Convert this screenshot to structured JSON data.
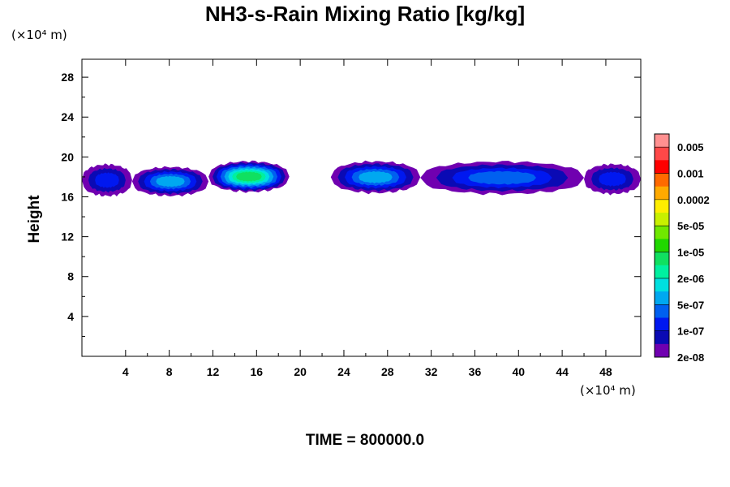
{
  "chart_data": {
    "type": "heatmap",
    "title": "NH3-s-Rain Mixing Ratio [kg/kg]",
    "ylabel": "Height",
    "xlabel": "",
    "x_unit": "(×10⁴ m)",
    "y_unit": "(×10⁴ m)",
    "xlim": [
      0,
      51.2
    ],
    "ylim": [
      0,
      29.8
    ],
    "x_ticks": [
      4,
      8,
      12,
      16,
      20,
      24,
      28,
      32,
      36,
      40,
      44,
      48
    ],
    "y_ticks": [
      4,
      8,
      12,
      16,
      20,
      24,
      28
    ],
    "grid": false,
    "time_label": "TIME = 800000.0",
    "colorbar": {
      "labels": [
        "0.005",
        "0.001",
        "0.0002",
        "5e-05",
        "1e-05",
        "2e-06",
        "5e-07",
        "1e-07",
        "2e-08"
      ],
      "colors": [
        "#ff9090",
        "#ff4848",
        "#ff0000",
        "#ff6a00",
        "#ffaa00",
        "#ffee00",
        "#c8f000",
        "#70e800",
        "#20d800",
        "#10e060",
        "#00f0a0",
        "#00e0e0",
        "#00a8f0",
        "#0060f0",
        "#0018f0",
        "#0a0ab4",
        "#7000b0"
      ]
    },
    "cloud_bands": [
      {
        "x_start": 0.0,
        "x_end": 4.6,
        "y_bottom": 16.2,
        "y_top": 19.7,
        "max_level": 3
      },
      {
        "x_start": 4.6,
        "x_end": 11.6,
        "y_bottom": 16.2,
        "y_top": 19.4,
        "max_level": 5
      },
      {
        "x_start": 11.6,
        "x_end": 19.0,
        "y_bottom": 16.6,
        "y_top": 20.0,
        "max_level": 8
      },
      {
        "x_start": 22.8,
        "x_end": 31.0,
        "y_bottom": 16.5,
        "y_top": 20.0,
        "max_level": 5
      },
      {
        "x_start": 31.0,
        "x_end": 46.0,
        "y_bottom": 16.4,
        "y_top": 20.0,
        "max_level": 4
      },
      {
        "x_start": 46.0,
        "x_end": 51.2,
        "y_bottom": 16.4,
        "y_top": 19.7,
        "max_level": 3
      }
    ]
  }
}
